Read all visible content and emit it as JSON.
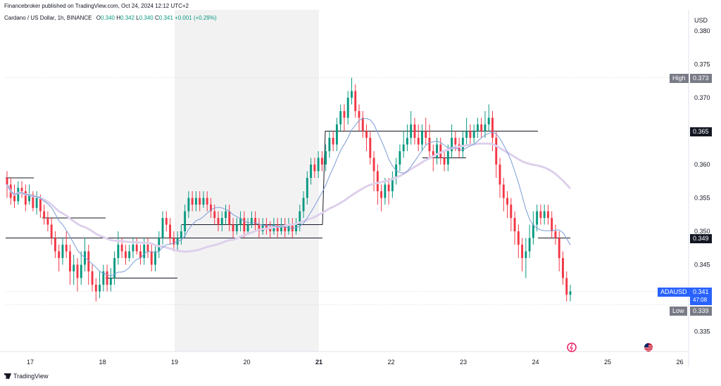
{
  "publisher": "Financebroker published on TradingView.com, Oct 24, 2024 12:12 UTC+2",
  "symbol_title": "Cardano / US Dollar, 1h, BINANCE",
  "ohlc": {
    "o_label": "O",
    "o": "0.340",
    "h_label": "H",
    "h": "0.342",
    "l_label": "L",
    "l": "0.340",
    "c_label": "C",
    "c": "0.341",
    "change": "+0.001 (+0.29%)"
  },
  "currency": "USD",
  "tags": {
    "high_label": "High",
    "high_value": "0.373",
    "level_1": "0.365",
    "level_2": "0.349",
    "symbol": "ADAUSD",
    "last_price": "0.341",
    "countdown": "47:08",
    "low_label": "Low",
    "low_value": "0.339"
  },
  "footer": {
    "brand": "TradingView"
  },
  "colors": {
    "up": "#089981",
    "down": "#f23645",
    "ma_fast": "#7b9cd6",
    "ma_slow": "#ded0ec",
    "tag_dark": "#131722",
    "tag_blue": "#2962ff",
    "tag_gray": "#787b86",
    "shade": "#f2f2f3"
  },
  "chart_data": {
    "type": "candlestick",
    "y_ticks": [
      0.335,
      0.34,
      0.345,
      0.35,
      0.355,
      0.36,
      0.365,
      0.37,
      0.375,
      0.38
    ],
    "x_ticks": [
      "17",
      "18",
      "19",
      "20",
      "21",
      "22",
      "23",
      "24",
      "25",
      "26"
    ],
    "highlight_range": [
      "19",
      "21"
    ],
    "levels": [
      0.373,
      0.365,
      0.349,
      0.341,
      0.339
    ],
    "candles": [
      [
        0.358,
        0.357,
        0.359,
        0.355
      ],
      [
        0.357,
        0.355,
        0.358,
        0.354
      ],
      [
        0.3555,
        0.3545,
        0.357,
        0.3535
      ],
      [
        0.3545,
        0.3565,
        0.3575,
        0.354
      ],
      [
        0.3565,
        0.356,
        0.3575,
        0.355
      ],
      [
        0.356,
        0.354,
        0.357,
        0.353
      ],
      [
        0.3545,
        0.3555,
        0.357,
        0.354
      ],
      [
        0.3555,
        0.3535,
        0.356,
        0.353
      ],
      [
        0.3535,
        0.355,
        0.356,
        0.3525
      ],
      [
        0.355,
        0.353,
        0.3555,
        0.352
      ],
      [
        0.353,
        0.352,
        0.354,
        0.351
      ],
      [
        0.352,
        0.351,
        0.353,
        0.35
      ],
      [
        0.351,
        0.349,
        0.352,
        0.348
      ],
      [
        0.349,
        0.347,
        0.35,
        0.346
      ],
      [
        0.347,
        0.346,
        0.348,
        0.344
      ],
      [
        0.346,
        0.348,
        0.349,
        0.345
      ],
      [
        0.348,
        0.347,
        0.35,
        0.346
      ],
      [
        0.347,
        0.344,
        0.348,
        0.342
      ],
      [
        0.344,
        0.345,
        0.3465,
        0.342
      ],
      [
        0.345,
        0.343,
        0.346,
        0.341
      ],
      [
        0.343,
        0.345,
        0.347,
        0.342
      ],
      [
        0.345,
        0.347,
        0.349,
        0.344
      ],
      [
        0.347,
        0.344,
        0.348,
        0.342
      ],
      [
        0.344,
        0.342,
        0.345,
        0.341
      ],
      [
        0.342,
        0.341,
        0.343,
        0.3395
      ],
      [
        0.341,
        0.342,
        0.344,
        0.34
      ],
      [
        0.342,
        0.344,
        0.345,
        0.341
      ],
      [
        0.344,
        0.342,
        0.345,
        0.341
      ],
      [
        0.342,
        0.343,
        0.3445,
        0.341
      ],
      [
        0.343,
        0.346,
        0.347,
        0.342
      ],
      [
        0.346,
        0.348,
        0.35,
        0.345
      ],
      [
        0.348,
        0.347,
        0.349,
        0.346
      ],
      [
        0.347,
        0.346,
        0.348,
        0.345
      ],
      [
        0.346,
        0.347,
        0.348,
        0.3455
      ],
      [
        0.347,
        0.348,
        0.349,
        0.346
      ],
      [
        0.348,
        0.347,
        0.349,
        0.3465
      ],
      [
        0.347,
        0.346,
        0.348,
        0.345
      ],
      [
        0.346,
        0.348,
        0.349,
        0.345
      ],
      [
        0.348,
        0.347,
        0.349,
        0.346
      ],
      [
        0.347,
        0.345,
        0.348,
        0.344
      ],
      [
        0.345,
        0.347,
        0.348,
        0.344
      ],
      [
        0.347,
        0.349,
        0.35,
        0.346
      ],
      [
        0.349,
        0.352,
        0.353,
        0.348
      ],
      [
        0.352,
        0.351,
        0.353,
        0.35
      ],
      [
        0.351,
        0.349,
        0.352,
        0.348
      ],
      [
        0.349,
        0.348,
        0.35,
        0.347
      ],
      [
        0.348,
        0.349,
        0.35,
        0.347
      ],
      [
        0.349,
        0.35,
        0.351,
        0.348
      ],
      [
        0.35,
        0.353,
        0.354,
        0.349
      ],
      [
        0.353,
        0.355,
        0.356,
        0.352
      ],
      [
        0.355,
        0.354,
        0.356,
        0.353
      ],
      [
        0.354,
        0.355,
        0.356,
        0.353
      ],
      [
        0.355,
        0.354,
        0.356,
        0.353
      ],
      [
        0.354,
        0.355,
        0.356,
        0.3535
      ],
      [
        0.355,
        0.354,
        0.356,
        0.353
      ],
      [
        0.354,
        0.353,
        0.355,
        0.352
      ],
      [
        0.353,
        0.352,
        0.354,
        0.351
      ],
      [
        0.352,
        0.351,
        0.353,
        0.35
      ],
      [
        0.351,
        0.352,
        0.353,
        0.35
      ],
      [
        0.352,
        0.353,
        0.354,
        0.351
      ],
      [
        0.353,
        0.351,
        0.354,
        0.35
      ],
      [
        0.351,
        0.35,
        0.352,
        0.349
      ],
      [
        0.35,
        0.351,
        0.352,
        0.3495
      ],
      [
        0.351,
        0.352,
        0.353,
        0.35
      ],
      [
        0.352,
        0.35,
        0.353,
        0.349
      ],
      [
        0.35,
        0.351,
        0.352,
        0.3495
      ],
      [
        0.351,
        0.352,
        0.353,
        0.3505
      ],
      [
        0.352,
        0.351,
        0.353,
        0.35
      ],
      [
        0.351,
        0.35,
        0.352,
        0.349
      ],
      [
        0.35,
        0.351,
        0.352,
        0.3495
      ],
      [
        0.351,
        0.3505,
        0.352,
        0.3495
      ],
      [
        0.3505,
        0.35,
        0.3515,
        0.349
      ],
      [
        0.35,
        0.351,
        0.352,
        0.3495
      ],
      [
        0.351,
        0.35,
        0.352,
        0.349
      ],
      [
        0.35,
        0.351,
        0.352,
        0.3495
      ],
      [
        0.351,
        0.35,
        0.352,
        0.349
      ],
      [
        0.35,
        0.351,
        0.352,
        0.3495
      ],
      [
        0.351,
        0.35,
        0.352,
        0.349
      ],
      [
        0.35,
        0.351,
        0.352,
        0.3495
      ],
      [
        0.351,
        0.353,
        0.354,
        0.35
      ],
      [
        0.353,
        0.355,
        0.356,
        0.352
      ],
      [
        0.355,
        0.358,
        0.359,
        0.354
      ],
      [
        0.358,
        0.36,
        0.361,
        0.357
      ],
      [
        0.36,
        0.359,
        0.361,
        0.358
      ],
      [
        0.359,
        0.361,
        0.362,
        0.358
      ],
      [
        0.361,
        0.36,
        0.362,
        0.359
      ],
      [
        0.36,
        0.362,
        0.363,
        0.359
      ],
      [
        0.362,
        0.364,
        0.365,
        0.361
      ],
      [
        0.364,
        0.363,
        0.365,
        0.362
      ],
      [
        0.363,
        0.366,
        0.367,
        0.362
      ],
      [
        0.366,
        0.368,
        0.369,
        0.365
      ],
      [
        0.368,
        0.367,
        0.369,
        0.365
      ],
      [
        0.367,
        0.37,
        0.371,
        0.366
      ],
      [
        0.37,
        0.371,
        0.373,
        0.369
      ],
      [
        0.371,
        0.368,
        0.372,
        0.367
      ],
      [
        0.368,
        0.367,
        0.369,
        0.365
      ],
      [
        0.367,
        0.365,
        0.368,
        0.364
      ],
      [
        0.365,
        0.364,
        0.366,
        0.362
      ],
      [
        0.364,
        0.361,
        0.365,
        0.36
      ],
      [
        0.361,
        0.359,
        0.362,
        0.356
      ],
      [
        0.359,
        0.356,
        0.36,
        0.354
      ],
      [
        0.356,
        0.355,
        0.357,
        0.353
      ],
      [
        0.355,
        0.357,
        0.358,
        0.354
      ],
      [
        0.357,
        0.356,
        0.358,
        0.354
      ],
      [
        0.356,
        0.358,
        0.359,
        0.355
      ],
      [
        0.358,
        0.36,
        0.361,
        0.357
      ],
      [
        0.36,
        0.362,
        0.363,
        0.359
      ],
      [
        0.362,
        0.363,
        0.365,
        0.361
      ],
      [
        0.363,
        0.364,
        0.366,
        0.362
      ],
      [
        0.364,
        0.366,
        0.368,
        0.363
      ],
      [
        0.366,
        0.364,
        0.367,
        0.363
      ],
      [
        0.364,
        0.363,
        0.366,
        0.362
      ],
      [
        0.363,
        0.365,
        0.366,
        0.362
      ],
      [
        0.365,
        0.364,
        0.367,
        0.363
      ],
      [
        0.364,
        0.362,
        0.366,
        0.361
      ],
      [
        0.362,
        0.361,
        0.363,
        0.359
      ],
      [
        0.361,
        0.363,
        0.364,
        0.36
      ],
      [
        0.363,
        0.361,
        0.364,
        0.36
      ],
      [
        0.361,
        0.36,
        0.362,
        0.359
      ],
      [
        0.36,
        0.362,
        0.363,
        0.359
      ],
      [
        0.362,
        0.364,
        0.366,
        0.361
      ],
      [
        0.364,
        0.363,
        0.365,
        0.362
      ],
      [
        0.363,
        0.362,
        0.364,
        0.361
      ],
      [
        0.362,
        0.364,
        0.365,
        0.361
      ],
      [
        0.364,
        0.365,
        0.367,
        0.363
      ],
      [
        0.365,
        0.364,
        0.366,
        0.363
      ],
      [
        0.364,
        0.365,
        0.366,
        0.363
      ],
      [
        0.365,
        0.366,
        0.367,
        0.364
      ],
      [
        0.366,
        0.365,
        0.367,
        0.364
      ],
      [
        0.365,
        0.366,
        0.368,
        0.364
      ],
      [
        0.366,
        0.367,
        0.369,
        0.365
      ],
      [
        0.367,
        0.364,
        0.368,
        0.362
      ],
      [
        0.364,
        0.36,
        0.365,
        0.358
      ],
      [
        0.36,
        0.357,
        0.361,
        0.355
      ],
      [
        0.357,
        0.355,
        0.358,
        0.353
      ],
      [
        0.355,
        0.354,
        0.356,
        0.352
      ],
      [
        0.354,
        0.352,
        0.355,
        0.35
      ],
      [
        0.352,
        0.35,
        0.353,
        0.348
      ],
      [
        0.35,
        0.348,
        0.351,
        0.346
      ],
      [
        0.348,
        0.346,
        0.349,
        0.344
      ],
      [
        0.346,
        0.347,
        0.349,
        0.343
      ],
      [
        0.347,
        0.349,
        0.351,
        0.346
      ],
      [
        0.349,
        0.351,
        0.353,
        0.348
      ],
      [
        0.351,
        0.353,
        0.354,
        0.35
      ],
      [
        0.353,
        0.352,
        0.354,
        0.351
      ],
      [
        0.352,
        0.353,
        0.354,
        0.351
      ],
      [
        0.353,
        0.352,
        0.354,
        0.351
      ],
      [
        0.352,
        0.35,
        0.353,
        0.349
      ],
      [
        0.35,
        0.349,
        0.351,
        0.348
      ],
      [
        0.349,
        0.346,
        0.35,
        0.344
      ],
      [
        0.346,
        0.343,
        0.347,
        0.342
      ],
      [
        0.343,
        0.3405,
        0.344,
        0.3395
      ],
      [
        0.3405,
        0.341,
        0.342,
        0.3395
      ]
    ]
  }
}
